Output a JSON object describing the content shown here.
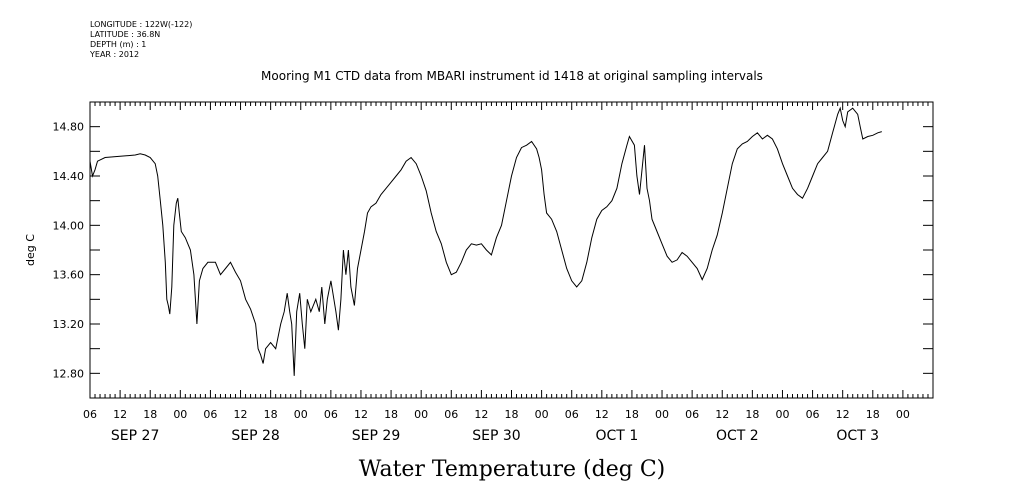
{
  "meta": {
    "longitude": "LONGITUDE : 122W(-122)",
    "latitude": "LATITUDE : 36.8N",
    "depth": "DEPTH (m) : 1",
    "year": "YEAR : 2012"
  },
  "chart_data": {
    "type": "line",
    "title": "Mooring M1 CTD data from MBARI instrument id 1418 at original sampling intervals",
    "xlabel": "Water Temperature (deg C)",
    "ylabel": "deg C",
    "ylim": [
      12.6,
      15.0
    ],
    "xlim_hours": [
      0,
      168
    ],
    "y_ticks": [
      12.8,
      13.2,
      13.6,
      14.0,
      14.4,
      14.8
    ],
    "y_tick_labels": [
      "12.80",
      "13.20",
      "13.60",
      "14.00",
      "14.40",
      "14.80"
    ],
    "x_hour_ticks": [
      {
        "h": 0,
        "label": "06"
      },
      {
        "h": 6,
        "label": "12"
      },
      {
        "h": 12,
        "label": "18"
      },
      {
        "h": 18,
        "label": "00"
      },
      {
        "h": 24,
        "label": "06"
      },
      {
        "h": 30,
        "label": "12"
      },
      {
        "h": 36,
        "label": "18"
      },
      {
        "h": 42,
        "label": "00"
      },
      {
        "h": 48,
        "label": "06"
      },
      {
        "h": 54,
        "label": "12"
      },
      {
        "h": 60,
        "label": "18"
      },
      {
        "h": 66,
        "label": "00"
      },
      {
        "h": 72,
        "label": "06"
      },
      {
        "h": 78,
        "label": "12"
      },
      {
        "h": 84,
        "label": "18"
      },
      {
        "h": 90,
        "label": "00"
      },
      {
        "h": 96,
        "label": "06"
      },
      {
        "h": 102,
        "label": "12"
      },
      {
        "h": 108,
        "label": "18"
      },
      {
        "h": 114,
        "label": "00"
      },
      {
        "h": 120,
        "label": "06"
      },
      {
        "h": 126,
        "label": "12"
      },
      {
        "h": 132,
        "label": "18"
      },
      {
        "h": 138,
        "label": "00"
      },
      {
        "h": 144,
        "label": "06"
      },
      {
        "h": 150,
        "label": "12"
      },
      {
        "h": 156,
        "label": "18"
      },
      {
        "h": 162,
        "label": "00"
      }
    ],
    "day_labels": [
      {
        "h": 9,
        "label": "SEP 27"
      },
      {
        "h": 33,
        "label": "SEP 28"
      },
      {
        "h": 57,
        "label": "SEP 29"
      },
      {
        "h": 81,
        "label": "SEP 30"
      },
      {
        "h": 105,
        "label": "OCT  1"
      },
      {
        "h": 129,
        "label": "OCT  2"
      },
      {
        "h": 153,
        "label": "OCT  3"
      }
    ],
    "series": [
      {
        "values": [
          [
            0,
            14.52
          ],
          [
            0.5,
            14.4
          ],
          [
            1,
            14.45
          ],
          [
            1.5,
            14.52
          ],
          [
            3,
            14.55
          ],
          [
            6,
            14.56
          ],
          [
            9,
            14.57
          ],
          [
            10,
            14.58
          ],
          [
            11,
            14.57
          ],
          [
            12,
            14.55
          ],
          [
            13,
            14.5
          ],
          [
            13.5,
            14.4
          ],
          [
            14,
            14.2
          ],
          [
            14.5,
            14.0
          ],
          [
            15,
            13.7
          ],
          [
            15.3,
            13.4
          ],
          [
            15.6,
            13.35
          ],
          [
            15.9,
            13.28
          ],
          [
            16.3,
            13.5
          ],
          [
            16.7,
            14.0
          ],
          [
            17.2,
            14.18
          ],
          [
            17.5,
            14.22
          ],
          [
            17.8,
            14.1
          ],
          [
            18.2,
            13.95
          ],
          [
            19,
            13.9
          ],
          [
            20,
            13.8
          ],
          [
            20.7,
            13.6
          ],
          [
            21.3,
            13.2
          ],
          [
            21.8,
            13.55
          ],
          [
            22.5,
            13.65
          ],
          [
            23.5,
            13.7
          ],
          [
            25,
            13.7
          ],
          [
            26,
            13.6
          ],
          [
            27,
            13.65
          ],
          [
            28,
            13.7
          ],
          [
            29,
            13.62
          ],
          [
            30,
            13.55
          ],
          [
            31,
            13.4
          ],
          [
            32,
            13.32
          ],
          [
            33,
            13.2
          ],
          [
            33.5,
            13.0
          ],
          [
            34,
            12.95
          ],
          [
            34.5,
            12.88
          ],
          [
            35,
            13.0
          ],
          [
            36,
            13.05
          ],
          [
            37,
            13.0
          ],
          [
            38,
            13.2
          ],
          [
            38.7,
            13.3
          ],
          [
            39.3,
            13.45
          ],
          [
            39.8,
            13.3
          ],
          [
            40.2,
            13.2
          ],
          [
            40.7,
            12.78
          ],
          [
            41.2,
            13.3
          ],
          [
            41.8,
            13.45
          ],
          [
            42.3,
            13.2
          ],
          [
            42.8,
            13.0
          ],
          [
            43.3,
            13.4
          ],
          [
            44,
            13.3
          ],
          [
            45,
            13.4
          ],
          [
            45.7,
            13.3
          ],
          [
            46.2,
            13.5
          ],
          [
            46.8,
            13.2
          ],
          [
            47.3,
            13.4
          ],
          [
            48,
            13.55
          ],
          [
            49,
            13.3
          ],
          [
            49.5,
            13.15
          ],
          [
            50,
            13.4
          ],
          [
            50.5,
            13.8
          ],
          [
            51,
            13.6
          ],
          [
            51.5,
            13.8
          ],
          [
            52,
            13.5
          ],
          [
            52.7,
            13.35
          ],
          [
            53.3,
            13.65
          ],
          [
            54,
            13.8
          ],
          [
            54.7,
            13.95
          ],
          [
            55.3,
            14.1
          ],
          [
            56,
            14.15
          ],
          [
            57,
            14.18
          ],
          [
            58,
            14.25
          ],
          [
            59,
            14.3
          ],
          [
            60,
            14.35
          ],
          [
            61,
            14.4
          ],
          [
            62,
            14.45
          ],
          [
            63,
            14.52
          ],
          [
            64,
            14.55
          ],
          [
            65,
            14.5
          ],
          [
            66,
            14.4
          ],
          [
            67,
            14.28
          ],
          [
            68,
            14.1
          ],
          [
            69,
            13.95
          ],
          [
            70,
            13.85
          ],
          [
            71,
            13.7
          ],
          [
            72,
            13.6
          ],
          [
            73,
            13.62
          ],
          [
            74,
            13.7
          ],
          [
            75,
            13.8
          ],
          [
            76,
            13.85
          ],
          [
            77,
            13.84
          ],
          [
            78,
            13.85
          ],
          [
            79,
            13.8
          ],
          [
            80,
            13.76
          ],
          [
            81,
            13.9
          ],
          [
            82,
            14.0
          ],
          [
            83,
            14.2
          ],
          [
            84,
            14.4
          ],
          [
            85,
            14.55
          ],
          [
            86,
            14.63
          ],
          [
            87,
            14.65
          ],
          [
            88,
            14.68
          ],
          [
            89,
            14.62
          ],
          [
            89.5,
            14.55
          ],
          [
            90,
            14.45
          ],
          [
            90.5,
            14.25
          ],
          [
            91,
            14.1
          ],
          [
            92,
            14.05
          ],
          [
            93,
            13.95
          ],
          [
            94,
            13.8
          ],
          [
            95,
            13.65
          ],
          [
            96,
            13.55
          ],
          [
            97,
            13.5
          ],
          [
            98,
            13.55
          ],
          [
            99,
            13.7
          ],
          [
            100,
            13.9
          ],
          [
            101,
            14.05
          ],
          [
            102,
            14.12
          ],
          [
            103,
            14.15
          ],
          [
            104,
            14.2
          ],
          [
            105,
            14.3
          ],
          [
            106,
            14.5
          ],
          [
            107,
            14.65
          ],
          [
            107.5,
            14.72
          ],
          [
            108.5,
            14.65
          ],
          [
            109,
            14.4
          ],
          [
            109.5,
            14.25
          ],
          [
            110,
            14.45
          ],
          [
            110.5,
            14.65
          ],
          [
            111,
            14.3
          ],
          [
            111.5,
            14.2
          ],
          [
            112,
            14.05
          ],
          [
            113,
            13.95
          ],
          [
            114,
            13.85
          ],
          [
            115,
            13.75
          ],
          [
            116,
            13.7
          ],
          [
            117,
            13.72
          ],
          [
            118,
            13.78
          ],
          [
            119,
            13.75
          ],
          [
            120,
            13.7
          ],
          [
            121,
            13.65
          ],
          [
            122,
            13.56
          ],
          [
            123,
            13.65
          ],
          [
            124,
            13.8
          ],
          [
            125,
            13.92
          ],
          [
            126,
            14.1
          ],
          [
            127,
            14.3
          ],
          [
            128,
            14.5
          ],
          [
            129,
            14.62
          ],
          [
            130,
            14.66
          ],
          [
            131,
            14.68
          ],
          [
            132,
            14.72
          ],
          [
            133,
            14.75
          ],
          [
            134,
            14.7
          ],
          [
            135,
            14.73
          ],
          [
            136,
            14.7
          ],
          [
            137,
            14.62
          ],
          [
            138,
            14.5
          ],
          [
            139,
            14.4
          ],
          [
            140,
            14.3
          ],
          [
            141,
            14.25
          ],
          [
            142,
            14.22
          ],
          [
            143,
            14.3
          ],
          [
            144,
            14.4
          ],
          [
            145,
            14.5
          ],
          [
            146,
            14.55
          ],
          [
            147,
            14.6
          ],
          [
            148,
            14.75
          ],
          [
            149,
            14.9
          ],
          [
            149.5,
            14.95
          ],
          [
            150,
            14.85
          ],
          [
            150.5,
            14.8
          ],
          [
            151,
            14.92
          ],
          [
            152,
            14.95
          ],
          [
            153,
            14.9
          ],
          [
            153.5,
            14.8
          ],
          [
            154,
            14.7
          ],
          [
            155,
            14.72
          ],
          [
            156,
            14.73
          ],
          [
            157,
            14.75
          ],
          [
            157.8,
            14.76
          ]
        ]
      }
    ]
  }
}
